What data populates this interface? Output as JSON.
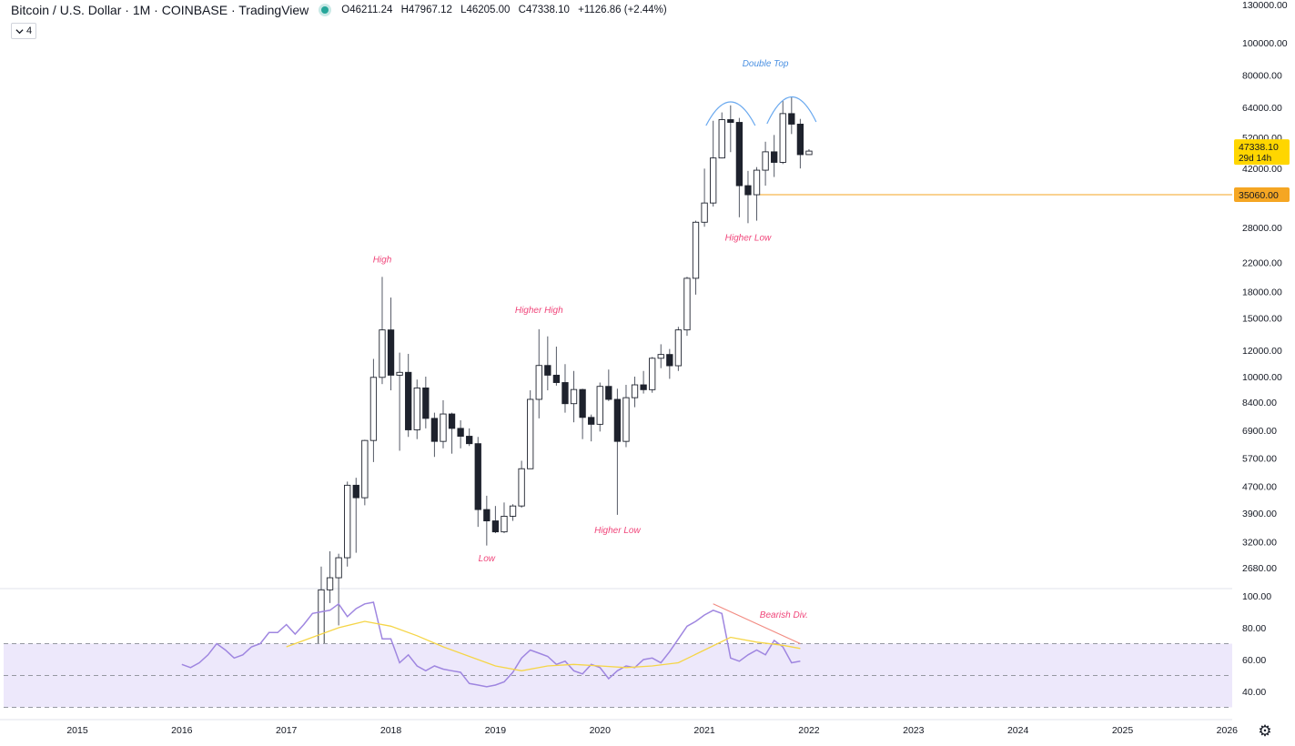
{
  "header": {
    "title": "Bitcoin / U.S. Dollar · 1M · COINBASE · TradingView",
    "open_label": "O",
    "open": "46211.24",
    "high_label": "H",
    "high": "47967.12",
    "low_label": "L",
    "low": "46205.00",
    "close_label": "C",
    "close": "47338.10",
    "change": "+1126.86 (+2.44%)",
    "indicator_count": "4",
    "indicator_chevron_icon": "chevron-down-icon"
  },
  "colors": {
    "up_body": "#ffffff",
    "down_body": "#1e222d",
    "wick": "#555a66",
    "annotation_pink": "#f0457a",
    "annotation_blue": "#4a90e2",
    "level_line": "#f5a623",
    "price_badge": "#ffd600",
    "rsi_line": "#9f86e0",
    "rsi_ma": "#f5d547",
    "rsi_band": "#ede8fb",
    "bearish_line": "#f28b82"
  },
  "chart_data": {
    "type": "candlestick",
    "price_axis": {
      "scale": "log",
      "tick_labels": [
        "130000.00",
        "100000.00",
        "80000.00",
        "64000.00",
        "52000.00",
        "42000.00",
        "35060.00",
        "28000.00",
        "22000.00",
        "18000.00",
        "15000.00",
        "12000.00",
        "10000.00",
        "8400.00",
        "6900.00",
        "5700.00",
        "4700.00",
        "3900.00",
        "3200.00",
        "2680.00"
      ]
    },
    "x_axis": {
      "tick_labels": [
        "2015",
        "2016",
        "2017",
        "2018",
        "2019",
        "2020",
        "2021",
        "2022",
        "2023",
        "2024",
        "2025",
        "2026"
      ]
    },
    "candles": [
      {
        "date": "2017-04",
        "o": 1080,
        "h": 1500,
        "l": 1050,
        "c": 1350
      },
      {
        "date": "2017-05",
        "o": 1350,
        "h": 2700,
        "l": 1350,
        "c": 2300
      },
      {
        "date": "2017-06",
        "o": 2300,
        "h": 3000,
        "l": 2100,
        "c": 2500
      },
      {
        "date": "2017-07",
        "o": 2500,
        "h": 2950,
        "l": 1800,
        "c": 2870
      },
      {
        "date": "2017-08",
        "o": 2870,
        "h": 4850,
        "l": 2700,
        "c": 4730
      },
      {
        "date": "2017-09",
        "o": 4730,
        "h": 4980,
        "l": 2970,
        "c": 4340
      },
      {
        "date": "2017-10",
        "o": 4340,
        "h": 6470,
        "l": 4120,
        "c": 6440
      },
      {
        "date": "2017-11",
        "o": 6440,
        "h": 11300,
        "l": 5550,
        "c": 9950
      },
      {
        "date": "2017-12",
        "o": 9950,
        "h": 19891,
        "l": 9500,
        "c": 13800
      },
      {
        "date": "2018-01",
        "o": 13800,
        "h": 17250,
        "l": 9100,
        "c": 10100
      },
      {
        "date": "2018-02",
        "o": 10100,
        "h": 11800,
        "l": 6000,
        "c": 10300
      },
      {
        "date": "2018-03",
        "o": 10300,
        "h": 11700,
        "l": 6600,
        "c": 6930
      },
      {
        "date": "2018-04",
        "o": 6930,
        "h": 9800,
        "l": 6500,
        "c": 9250
      },
      {
        "date": "2018-05",
        "o": 9250,
        "h": 10000,
        "l": 7000,
        "c": 7500
      },
      {
        "date": "2018-06",
        "o": 7500,
        "h": 7800,
        "l": 5750,
        "c": 6400
      },
      {
        "date": "2018-07",
        "o": 6400,
        "h": 8500,
        "l": 6100,
        "c": 7730
      },
      {
        "date": "2018-08",
        "o": 7730,
        "h": 7800,
        "l": 5880,
        "c": 7000
      },
      {
        "date": "2018-09",
        "o": 7000,
        "h": 7400,
        "l": 6100,
        "c": 6630
      },
      {
        "date": "2018-10",
        "o": 6630,
        "h": 7000,
        "l": 6200,
        "c": 6300
      },
      {
        "date": "2018-11",
        "o": 6300,
        "h": 6600,
        "l": 3550,
        "c": 4000
      },
      {
        "date": "2018-12",
        "o": 4000,
        "h": 4400,
        "l": 3122,
        "c": 3700
      },
      {
        "date": "2019-01",
        "o": 3700,
        "h": 4100,
        "l": 3400,
        "c": 3430
      },
      {
        "date": "2019-02",
        "o": 3430,
        "h": 4200,
        "l": 3400,
        "c": 3820
      },
      {
        "date": "2019-03",
        "o": 3820,
        "h": 4150,
        "l": 3700,
        "c": 4100
      },
      {
        "date": "2019-04",
        "o": 4100,
        "h": 5600,
        "l": 4050,
        "c": 5300
      },
      {
        "date": "2019-05",
        "o": 5300,
        "h": 9100,
        "l": 5300,
        "c": 8550
      },
      {
        "date": "2019-06",
        "o": 8550,
        "h": 13868,
        "l": 7500,
        "c": 10800
      },
      {
        "date": "2019-07",
        "o": 10800,
        "h": 13200,
        "l": 9100,
        "c": 10100
      },
      {
        "date": "2019-08",
        "o": 10100,
        "h": 12300,
        "l": 9400,
        "c": 9600
      },
      {
        "date": "2019-09",
        "o": 9600,
        "h": 10900,
        "l": 7800,
        "c": 8300
      },
      {
        "date": "2019-10",
        "o": 8300,
        "h": 10400,
        "l": 7300,
        "c": 9150
      },
      {
        "date": "2019-11",
        "o": 9150,
        "h": 9200,
        "l": 6500,
        "c": 7550
      },
      {
        "date": "2019-12",
        "o": 7550,
        "h": 7700,
        "l": 6400,
        "c": 7200
      },
      {
        "date": "2020-01",
        "o": 7200,
        "h": 9600,
        "l": 6850,
        "c": 9350
      },
      {
        "date": "2020-02",
        "o": 9350,
        "h": 10500,
        "l": 8450,
        "c": 8550
      },
      {
        "date": "2020-03",
        "o": 8550,
        "h": 9200,
        "l": 3858,
        "c": 6400
      },
      {
        "date": "2020-04",
        "o": 6400,
        "h": 9450,
        "l": 6150,
        "c": 8650
      },
      {
        "date": "2020-05",
        "o": 8650,
        "h": 10000,
        "l": 8100,
        "c": 9450
      },
      {
        "date": "2020-06",
        "o": 9450,
        "h": 10400,
        "l": 8900,
        "c": 9140
      },
      {
        "date": "2020-07",
        "o": 9140,
        "h": 11450,
        "l": 8950,
        "c": 11350
      },
      {
        "date": "2020-08",
        "o": 11350,
        "h": 12500,
        "l": 10600,
        "c": 11650
      },
      {
        "date": "2020-09",
        "o": 11650,
        "h": 12100,
        "l": 9850,
        "c": 10780
      },
      {
        "date": "2020-10",
        "o": 10780,
        "h": 14100,
        "l": 10400,
        "c": 13800
      },
      {
        "date": "2020-11",
        "o": 13800,
        "h": 19900,
        "l": 13250,
        "c": 19700
      },
      {
        "date": "2020-12",
        "o": 19700,
        "h": 29300,
        "l": 17600,
        "c": 28990
      },
      {
        "date": "2021-01",
        "o": 28990,
        "h": 41950,
        "l": 28100,
        "c": 33100
      },
      {
        "date": "2021-02",
        "o": 33100,
        "h": 58350,
        "l": 32300,
        "c": 45150
      },
      {
        "date": "2021-03",
        "o": 45150,
        "h": 61800,
        "l": 45000,
        "c": 58800
      },
      {
        "date": "2021-04",
        "o": 58800,
        "h": 64895,
        "l": 47000,
        "c": 57700
      },
      {
        "date": "2021-05",
        "o": 57700,
        "h": 59500,
        "l": 30000,
        "c": 37300
      },
      {
        "date": "2021-06",
        "o": 37300,
        "h": 41300,
        "l": 28800,
        "c": 35040
      },
      {
        "date": "2021-07",
        "o": 35040,
        "h": 42400,
        "l": 29300,
        "c": 41500
      },
      {
        "date": "2021-08",
        "o": 41500,
        "h": 50500,
        "l": 37300,
        "c": 47100
      },
      {
        "date": "2021-09",
        "o": 47100,
        "h": 52900,
        "l": 39600,
        "c": 43800
      },
      {
        "date": "2021-10",
        "o": 43800,
        "h": 67000,
        "l": 43300,
        "c": 61300
      },
      {
        "date": "2021-11",
        "o": 61300,
        "h": 69000,
        "l": 53250,
        "c": 57000
      },
      {
        "date": "2021-12",
        "o": 57000,
        "h": 59100,
        "l": 42000,
        "c": 46200
      },
      {
        "date": "2022-01",
        "o": 46211.24,
        "h": 47967.12,
        "l": 46205.0,
        "c": 47338.1
      }
    ],
    "level_line": {
      "value": 35060.0,
      "label": "35060.00",
      "start_date": "2021-07"
    },
    "last_price": {
      "value": 47338.1,
      "label": "47338.10",
      "countdown": "29d 14h"
    },
    "annotations": [
      {
        "text": "High",
        "date": "2017-12",
        "price": 22000,
        "color": "pink"
      },
      {
        "text": "Low",
        "date": "2018-12",
        "price": 2800,
        "color": "pink"
      },
      {
        "text": "Higher High",
        "date": "2019-06",
        "price": 15500,
        "color": "pink"
      },
      {
        "text": "Higher Low",
        "date": "2020-03",
        "price": 3400,
        "color": "pink"
      },
      {
        "text": "Higher Low",
        "date": "2021-06",
        "price": 25500,
        "color": "pink"
      },
      {
        "text": "Double Top",
        "date": "2021-08",
        "price": 85000,
        "color": "blue"
      }
    ],
    "rsi": {
      "tick_labels": [
        "100.00",
        "80.00",
        "60.00",
        "40.00"
      ],
      "overbought": 70,
      "middle": 50,
      "oversold": 30,
      "values": [
        {
          "date": "2016-01",
          "v": 57
        },
        {
          "date": "2016-02",
          "v": 55
        },
        {
          "date": "2016-03",
          "v": 58
        },
        {
          "date": "2016-04",
          "v": 63
        },
        {
          "date": "2016-05",
          "v": 70
        },
        {
          "date": "2016-06",
          "v": 66
        },
        {
          "date": "2016-07",
          "v": 61
        },
        {
          "date": "2016-08",
          "v": 63
        },
        {
          "date": "2016-09",
          "v": 68
        },
        {
          "date": "2016-10",
          "v": 70
        },
        {
          "date": "2016-11",
          "v": 77
        },
        {
          "date": "2016-12",
          "v": 77
        },
        {
          "date": "2017-01",
          "v": 82
        },
        {
          "date": "2017-02",
          "v": 76
        },
        {
          "date": "2017-03",
          "v": 82
        },
        {
          "date": "2017-04",
          "v": 89
        },
        {
          "date": "2017-05",
          "v": 90
        },
        {
          "date": "2017-06",
          "v": 91
        },
        {
          "date": "2017-07",
          "v": 95
        },
        {
          "date": "2017-08",
          "v": 87
        },
        {
          "date": "2017-09",
          "v": 92
        },
        {
          "date": "2017-10",
          "v": 95
        },
        {
          "date": "2017-11",
          "v": 96
        },
        {
          "date": "2017-12",
          "v": 73
        },
        {
          "date": "2018-01",
          "v": 73
        },
        {
          "date": "2018-02",
          "v": 58
        },
        {
          "date": "2018-03",
          "v": 63
        },
        {
          "date": "2018-04",
          "v": 56
        },
        {
          "date": "2018-05",
          "v": 53
        },
        {
          "date": "2018-06",
          "v": 56
        },
        {
          "date": "2018-07",
          "v": 54
        },
        {
          "date": "2018-08",
          "v": 53
        },
        {
          "date": "2018-09",
          "v": 52
        },
        {
          "date": "2018-10",
          "v": 45
        },
        {
          "date": "2018-11",
          "v": 44
        },
        {
          "date": "2018-12",
          "v": 43
        },
        {
          "date": "2019-01",
          "v": 44
        },
        {
          "date": "2019-02",
          "v": 46
        },
        {
          "date": "2019-03",
          "v": 52
        },
        {
          "date": "2019-04",
          "v": 61
        },
        {
          "date": "2019-05",
          "v": 66
        },
        {
          "date": "2019-06",
          "v": 64
        },
        {
          "date": "2019-07",
          "v": 62
        },
        {
          "date": "2019-08",
          "v": 57
        },
        {
          "date": "2019-09",
          "v": 59
        },
        {
          "date": "2019-10",
          "v": 53
        },
        {
          "date": "2019-11",
          "v": 51
        },
        {
          "date": "2019-12",
          "v": 57
        },
        {
          "date": "2020-01",
          "v": 55
        },
        {
          "date": "2020-02",
          "v": 48
        },
        {
          "date": "2020-03",
          "v": 53
        },
        {
          "date": "2020-04",
          "v": 56
        },
        {
          "date": "2020-05",
          "v": 55
        },
        {
          "date": "2020-06",
          "v": 60
        },
        {
          "date": "2020-07",
          "v": 61
        },
        {
          "date": "2020-08",
          "v": 58
        },
        {
          "date": "2020-09",
          "v": 65
        },
        {
          "date": "2020-10",
          "v": 73
        },
        {
          "date": "2020-11",
          "v": 81
        },
        {
          "date": "2020-12",
          "v": 84
        },
        {
          "date": "2021-01",
          "v": 88
        },
        {
          "date": "2021-02",
          "v": 91
        },
        {
          "date": "2021-03",
          "v": 89
        },
        {
          "date": "2021-04",
          "v": 61
        },
        {
          "date": "2021-05",
          "v": 59
        },
        {
          "date": "2021-06",
          "v": 63
        },
        {
          "date": "2021-07",
          "v": 66
        },
        {
          "date": "2021-08",
          "v": 63
        },
        {
          "date": "2021-09",
          "v": 72
        },
        {
          "date": "2021-10",
          "v": 68
        },
        {
          "date": "2021-11",
          "v": 58
        },
        {
          "date": "2021-12",
          "v": 59
        }
      ],
      "ma_values": [
        {
          "date": "2017-01",
          "v": 68
        },
        {
          "date": "2017-04",
          "v": 74
        },
        {
          "date": "2017-07",
          "v": 80
        },
        {
          "date": "2017-10",
          "v": 84
        },
        {
          "date": "2018-01",
          "v": 81
        },
        {
          "date": "2018-04",
          "v": 75
        },
        {
          "date": "2018-07",
          "v": 68
        },
        {
          "date": "2018-10",
          "v": 62
        },
        {
          "date": "2019-01",
          "v": 56
        },
        {
          "date": "2019-04",
          "v": 53
        },
        {
          "date": "2019-07",
          "v": 56
        },
        {
          "date": "2019-10",
          "v": 57
        },
        {
          "date": "2020-01",
          "v": 56
        },
        {
          "date": "2020-04",
          "v": 55
        },
        {
          "date": "2020-07",
          "v": 56
        },
        {
          "date": "2020-10",
          "v": 58
        },
        {
          "date": "2021-01",
          "v": 66
        },
        {
          "date": "2021-04",
          "v": 74
        },
        {
          "date": "2021-07",
          "v": 71
        },
        {
          "date": "2021-10",
          "v": 69
        },
        {
          "date": "2021-12",
          "v": 67
        }
      ],
      "divergence": {
        "text": "Bearish Div.",
        "from": {
          "date": "2021-02",
          "v": 95
        },
        "to": {
          "date": "2021-12",
          "v": 70
        }
      }
    }
  }
}
